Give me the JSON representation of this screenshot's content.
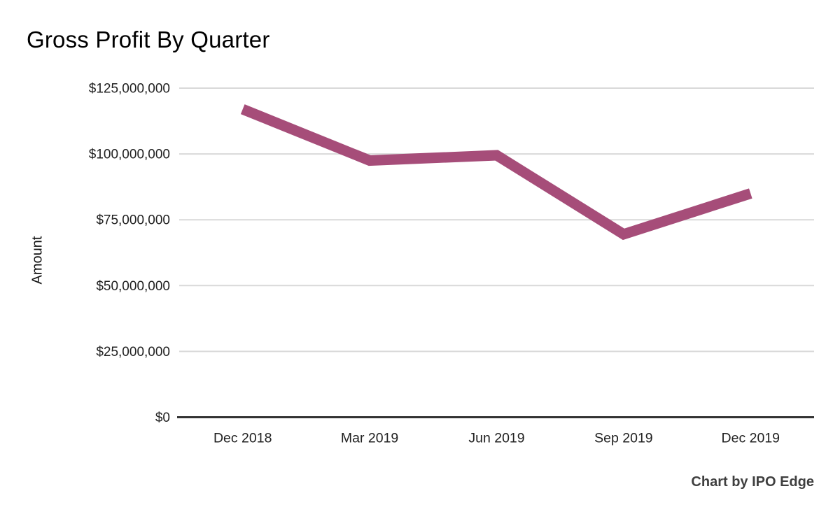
{
  "page": {
    "background_color": "#ffffff"
  },
  "chart_data": {
    "type": "line",
    "title": "Gross Profit By Quarter",
    "xlabel": "",
    "ylabel": "Amount",
    "categories": [
      "Dec 2018",
      "Mar 2019",
      "Jun 2019",
      "Sep 2019",
      "Dec 2019"
    ],
    "series": [
      {
        "name": "Gross Profit",
        "values": [
          117000000,
          97500000,
          99500000,
          69500000,
          85000000
        ],
        "color": "#a64d79",
        "stroke_width": 15
      }
    ],
    "ylim": [
      0,
      125000000
    ],
    "y_ticks": [
      0,
      25000000,
      50000000,
      75000000,
      100000000,
      125000000
    ],
    "y_tick_labels": [
      "$0",
      "$25,000,000",
      "$50,000,000",
      "$75,000,000",
      "$100,000,000",
      "$125,000,000"
    ],
    "grid": true,
    "legend_position": "none",
    "gridline_color": "#d9d9d9",
    "axis_line_color": "#333333",
    "tick_label_color": "#212121",
    "title_color": "#000000"
  },
  "attribution": {
    "text": "Chart by IPO Edge"
  }
}
